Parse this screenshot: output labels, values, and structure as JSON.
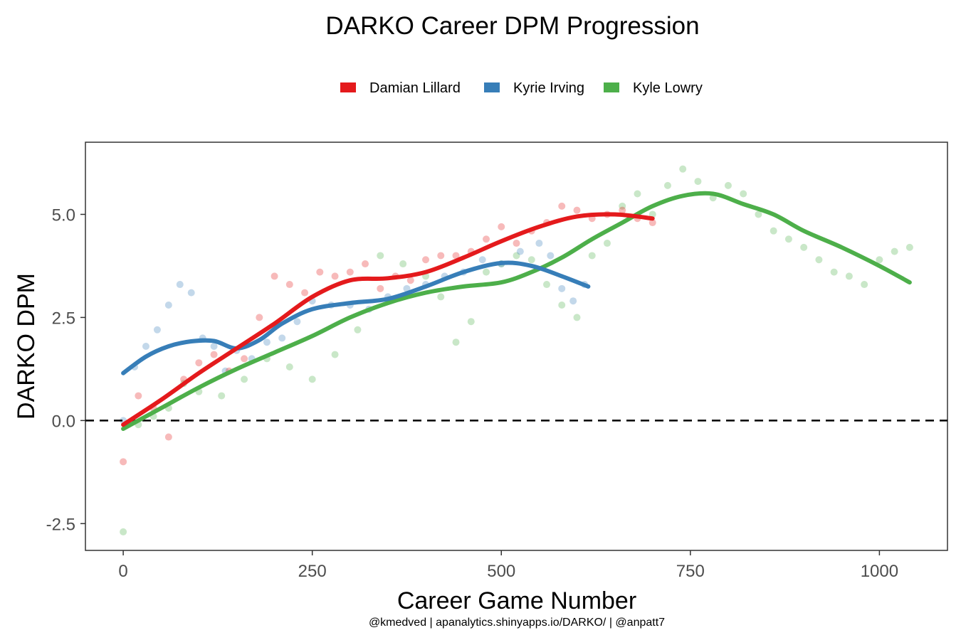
{
  "chart_data": {
    "type": "scatter",
    "title": "DARKO Career DPM Progression",
    "xlabel": "Career Game Number",
    "ylabel": "DARKO DPM",
    "caption": "@kmedved | apanalytics.shinyapps.io/DARKO/ | @anpatt7",
    "xlim": [
      -50,
      1090
    ],
    "ylim": [
      -3.15,
      6.75
    ],
    "x_ticks": [
      0,
      250,
      500,
      750,
      1000
    ],
    "x_tick_labels": [
      "0",
      "250",
      "500",
      "750",
      "1000"
    ],
    "y_ticks": [
      -2.5,
      0,
      2.5,
      5
    ],
    "y_tick_labels": [
      "-2.5",
      "0.0",
      "2.5",
      "5.0"
    ],
    "reference_line": {
      "y": 0,
      "style": "dashed"
    },
    "legend_position": "top",
    "grid": false,
    "series": [
      {
        "name": "Damian Lillard",
        "color": "#E41A1C",
        "trend_x": [
          0,
          50,
          100,
          150,
          200,
          250,
          300,
          350,
          400,
          450,
          500,
          550,
          600,
          650,
          700
        ],
        "trend_y": [
          -0.1,
          0.5,
          1.15,
          1.75,
          2.35,
          3.0,
          3.4,
          3.45,
          3.6,
          3.95,
          4.35,
          4.7,
          4.95,
          5.0,
          4.9
        ],
        "points_x": [
          0,
          20,
          40,
          60,
          80,
          100,
          120,
          140,
          160,
          180,
          200,
          220,
          240,
          260,
          280,
          300,
          320,
          340,
          360,
          380,
          400,
          420,
          440,
          460,
          480,
          500,
          520,
          540,
          560,
          580,
          600,
          620,
          640,
          660,
          680,
          700
        ],
        "points_y": [
          -1.0,
          0.6,
          0.3,
          -0.4,
          1.0,
          1.4,
          1.6,
          1.2,
          1.5,
          2.5,
          3.5,
          3.3,
          3.1,
          3.6,
          3.5,
          3.6,
          3.8,
          3.2,
          3.5,
          3.4,
          3.9,
          4.0,
          4.0,
          4.1,
          4.4,
          4.7,
          4.3,
          4.6,
          4.8,
          5.2,
          5.1,
          4.9,
          5.0,
          5.1,
          4.9,
          4.8
        ]
      },
      {
        "name": "Kyrie Irving",
        "color": "#377EB8",
        "trend_x": [
          0,
          30,
          60,
          90,
          120,
          150,
          180,
          210,
          250,
          300,
          350,
          400,
          450,
          500,
          540,
          580,
          615
        ],
        "trend_y": [
          1.15,
          1.55,
          1.8,
          1.92,
          1.93,
          1.75,
          1.95,
          2.35,
          2.7,
          2.85,
          2.95,
          3.25,
          3.6,
          3.82,
          3.75,
          3.5,
          3.25
        ],
        "points_x": [
          0,
          15,
          30,
          45,
          60,
          75,
          90,
          105,
          120,
          135,
          150,
          170,
          190,
          210,
          230,
          250,
          275,
          300,
          325,
          350,
          375,
          400,
          425,
          450,
          475,
          500,
          525,
          550,
          565,
          580,
          595,
          610
        ],
        "points_y": [
          0.0,
          1.3,
          1.8,
          2.2,
          2.8,
          3.3,
          3.1,
          2.0,
          1.8,
          1.2,
          1.7,
          1.5,
          1.9,
          2.0,
          2.4,
          2.9,
          2.8,
          2.8,
          2.7,
          3.0,
          3.2,
          3.3,
          3.5,
          3.6,
          3.9,
          3.8,
          4.1,
          4.3,
          4.0,
          3.2,
          2.9,
          3.3
        ]
      },
      {
        "name": "Kyle Lowry",
        "color": "#4DAF4A",
        "trend_x": [
          0,
          50,
          100,
          150,
          200,
          250,
          300,
          350,
          400,
          450,
          500,
          540,
          580,
          620,
          660,
          700,
          740,
          780,
          820,
          860,
          900,
          950,
          1000,
          1040
        ],
        "trend_y": [
          -0.2,
          0.3,
          0.8,
          1.25,
          1.65,
          2.05,
          2.5,
          2.85,
          3.1,
          3.25,
          3.35,
          3.6,
          3.95,
          4.4,
          4.8,
          5.2,
          5.45,
          5.5,
          5.25,
          5.0,
          4.6,
          4.2,
          3.75,
          3.35
        ],
        "points_x": [
          0,
          20,
          40,
          60,
          80,
          100,
          130,
          160,
          190,
          220,
          250,
          280,
          310,
          340,
          370,
          400,
          420,
          440,
          460,
          480,
          500,
          520,
          540,
          560,
          580,
          600,
          620,
          640,
          660,
          680,
          700,
          720,
          740,
          760,
          780,
          800,
          820,
          840,
          860,
          880,
          900,
          920,
          940,
          960,
          980,
          1000,
          1020,
          1040
        ],
        "points_y": [
          -2.7,
          -0.1,
          0.1,
          0.3,
          0.9,
          0.7,
          0.6,
          1.0,
          1.5,
          1.3,
          1.0,
          1.6,
          2.2,
          4.0,
          3.8,
          3.5,
          3.0,
          1.9,
          2.4,
          3.6,
          3.8,
          4.0,
          3.9,
          3.3,
          2.8,
          2.5,
          4.0,
          4.3,
          5.2,
          5.5,
          5.0,
          5.7,
          6.1,
          5.8,
          5.4,
          5.7,
          5.5,
          5.0,
          4.6,
          4.4,
          4.2,
          3.9,
          3.6,
          3.5,
          3.3,
          3.9,
          4.1,
          4.2
        ]
      }
    ]
  }
}
